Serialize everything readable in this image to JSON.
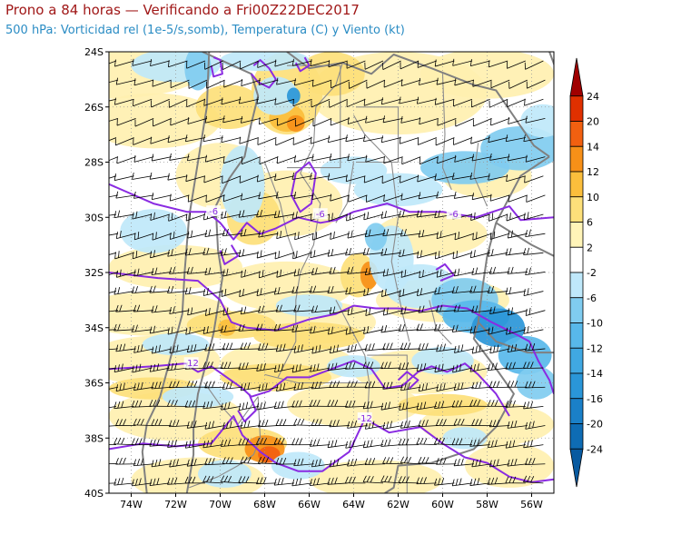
{
  "header": {
    "title": "Prono a 84 horas — Verificando a Fri00Z22DEC2017",
    "subtitle": "500 hPa: Vorticidad rel (1e-5/s,somb), Temperatura (C) y Viento (kt)"
  },
  "map": {
    "lat_labels": [
      "24S",
      "26S",
      "28S",
      "30S",
      "32S",
      "34S",
      "36S",
      "38S",
      "40S"
    ],
    "lon_labels": [
      "74W",
      "72W",
      "70W",
      "68W",
      "66W",
      "64W",
      "62W",
      "60W",
      "58W",
      "56W"
    ],
    "lat_range": [
      -40,
      -24
    ],
    "lon_range": [
      -75,
      -55
    ],
    "temperature_contour_labels": [
      {
        "text": "-6",
        "lon": -70.3,
        "lat": -29.8
      },
      {
        "text": "-6",
        "lon": -65.5,
        "lat": -29.9
      },
      {
        "text": "-6",
        "lon": -59.5,
        "lat": -29.9
      },
      {
        "text": "-12",
        "lon": -71.3,
        "lat": -35.3
      },
      {
        "text": "-12",
        "lon": -63.5,
        "lat": -37.3
      }
    ],
    "contour_color": "#8a2be2",
    "border_color": "#808080"
  },
  "colorbar": {
    "labels": [
      "24",
      "20",
      "14",
      "12",
      "10",
      "6",
      "2",
      "-2",
      "-6",
      "-10",
      "-12",
      "-14",
      "-16",
      "-20",
      "-24"
    ],
    "colors": [
      "#a00000",
      "#e03000",
      "#f26010",
      "#f79018",
      "#fbbe3c",
      "#fde07a",
      "#fff4b8",
      "#ffffff",
      "#bfe8fa",
      "#80ccf0",
      "#58b8ea",
      "#40a8e2",
      "#2a96d8",
      "#1a80c8",
      "#0e6cb4",
      "#085aa0"
    ]
  }
}
